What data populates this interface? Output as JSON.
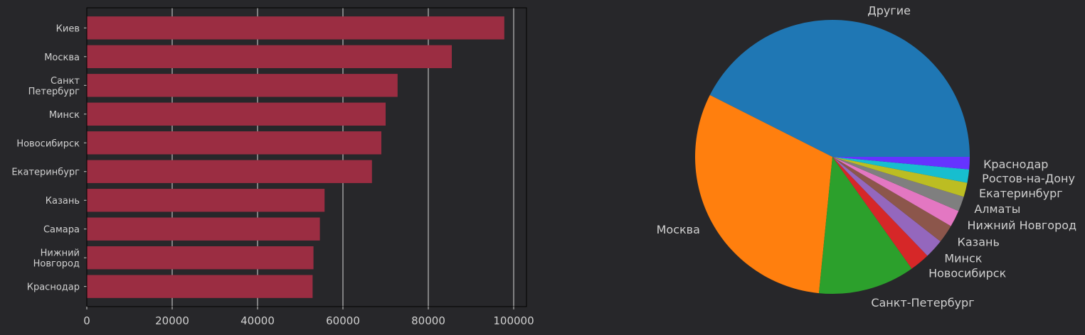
{
  "chart_data": [
    {
      "type": "bar",
      "orientation": "horizontal",
      "categories": [
        "Киев",
        "Москва",
        "Санкт\nПетербург",
        "Минск",
        "Новосибирск",
        "Екатеринбург",
        "Казань",
        "Самара",
        "Нижний\nНовгород",
        "Краснодар"
      ],
      "values": [
        97800,
        85500,
        72800,
        70000,
        69000,
        66800,
        55700,
        54600,
        53100,
        52900
      ],
      "xticks": [
        0,
        20000,
        40000,
        60000,
        80000,
        100000
      ],
      "xlim": [
        0,
        103000
      ],
      "grid": "vertical",
      "bar_color": "#9b2d42",
      "title": "",
      "xlabel": "",
      "ylabel": ""
    },
    {
      "type": "pie",
      "labels": [
        "Другие",
        "Москва",
        "Санкт-Петербург",
        "Новосибирск",
        "Минск",
        "Казань",
        "Нижний Новгород",
        "Алматы",
        "Екатеринбург",
        "Ростов-на-Дону",
        "Краснодар"
      ],
      "values": [
        43.4,
        31.5,
        11.6,
        2.4,
        2.3,
        2.2,
        2.0,
        1.8,
        1.7,
        1.6,
        1.5
      ],
      "colors": [
        "#1f77b4",
        "#ff7f0e",
        "#2ca02c",
        "#d62728",
        "#9467bd",
        "#8c564b",
        "#e377c2",
        "#7f7f7f",
        "#bcbd22",
        "#17becf",
        "#6633ff"
      ],
      "startangle": 0,
      "direction": "counterclockwise"
    }
  ],
  "theme": {
    "background": "#27272a",
    "text": "#d0d0d0",
    "axis": "#cccccc",
    "grid": "#d8d8d8"
  }
}
